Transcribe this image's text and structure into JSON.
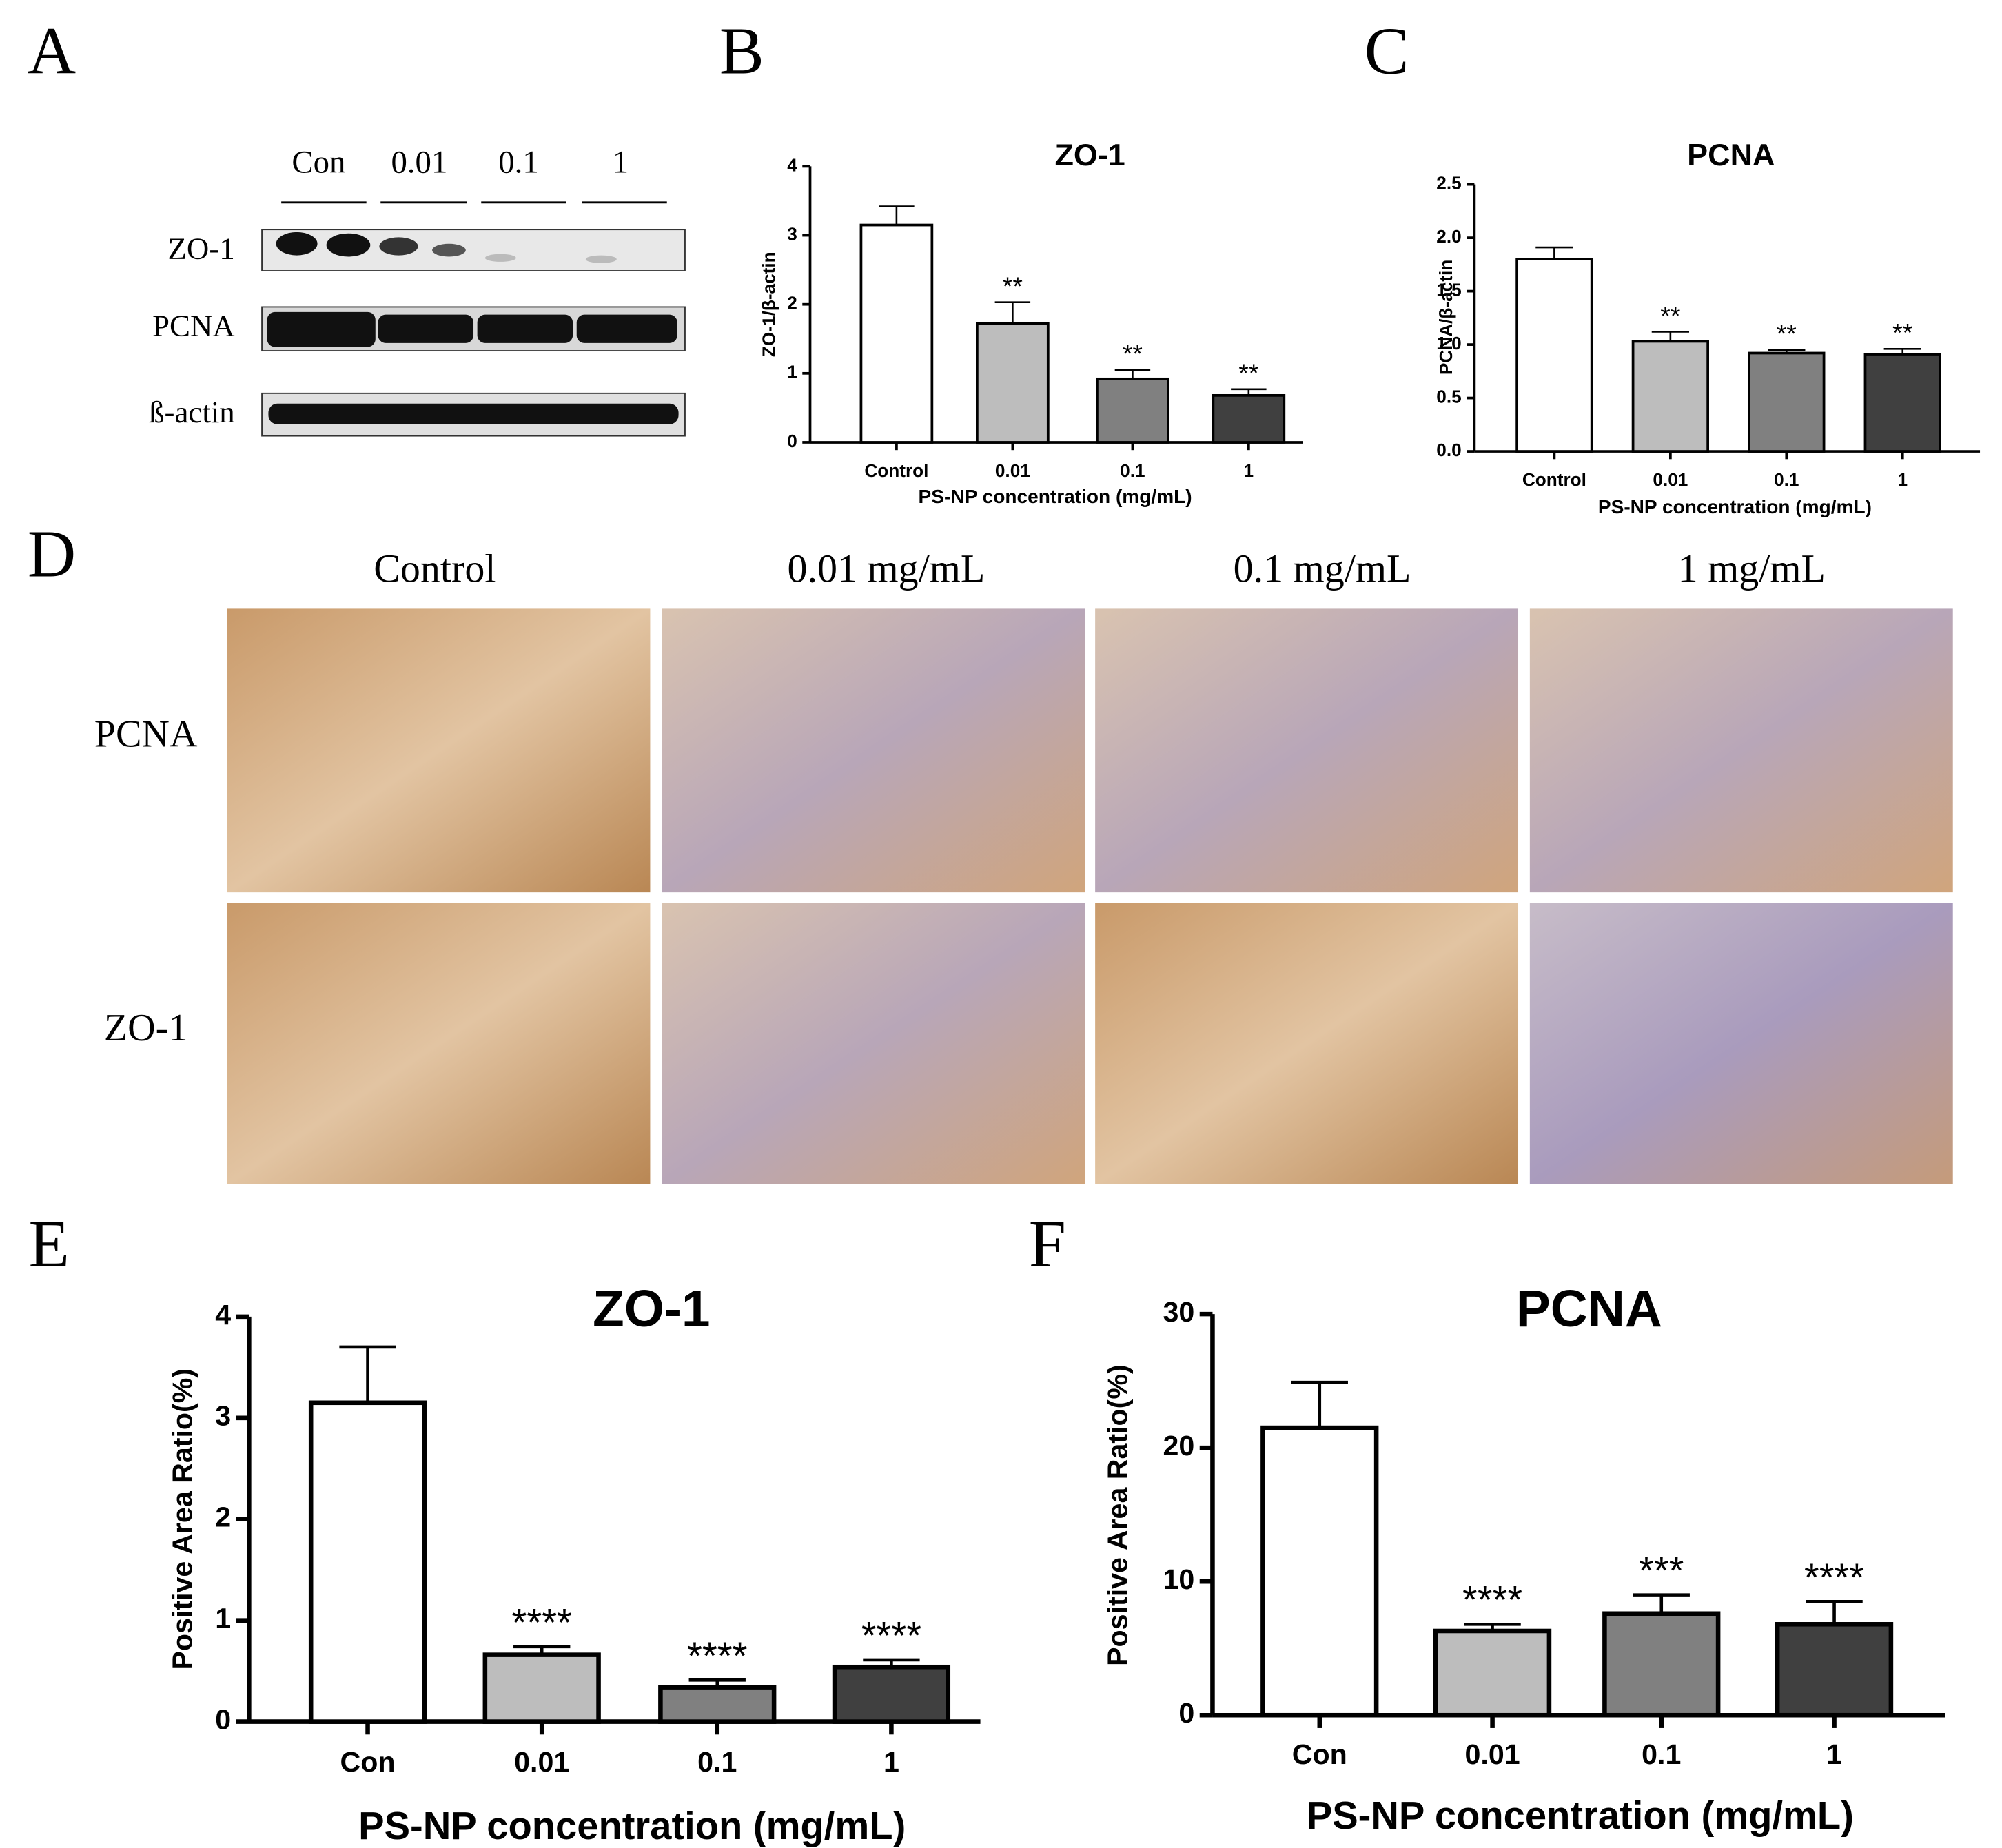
{
  "panel_labels": [
    "A",
    "B",
    "C",
    "D",
    "E",
    "F"
  ],
  "western_blot": {
    "lanes": [
      "Con",
      "0.01",
      "0.1",
      "1"
    ],
    "rows": [
      "ZO-1",
      "PCNA",
      "ß-actin"
    ]
  },
  "histology": {
    "columns": [
      "Control",
      "0.01 mg/mL",
      "0.1 mg/mL",
      "1 mg/mL"
    ],
    "rows": [
      "PCNA",
      "ZO-1"
    ]
  },
  "chart_data": [
    {
      "type": "bar",
      "title": "ZO-1",
      "x_label": "PS-NP concentration (mg/mL)",
      "y_label": "ZO-1/β-actin",
      "categories": [
        "Control",
        "0.01",
        "0.1",
        "1"
      ],
      "values": [
        3.15,
        1.72,
        0.92,
        0.68
      ],
      "errors": [
        0.27,
        0.31,
        0.13,
        0.09
      ],
      "annotations": [
        null,
        "**",
        "**",
        "**"
      ],
      "colors": [
        "#ffffff",
        "#bdbdbd",
        "#808080",
        "#404040"
      ],
      "ylim": [
        0,
        4
      ],
      "yticks": [
        0,
        1,
        2,
        3,
        4
      ]
    },
    {
      "type": "bar",
      "title": "PCNA",
      "x_label": "PS-NP concentration (mg/mL)",
      "y_label": "PCNA/β-actin",
      "categories": [
        "Control",
        "0.01",
        "0.1",
        "1"
      ],
      "values": [
        1.8,
        1.03,
        0.92,
        0.91
      ],
      "errors": [
        0.11,
        0.09,
        0.03,
        0.05
      ],
      "annotations": [
        null,
        "**",
        "**",
        "**"
      ],
      "colors": [
        "#ffffff",
        "#bdbdbd",
        "#808080",
        "#404040"
      ],
      "ylim": [
        0,
        2.5
      ],
      "yticks": [
        {
          "value": 0,
          "label": "0.0"
        },
        0.5,
        {
          "value": 1,
          "label": "1.0"
        },
        1.5,
        {
          "value": 2,
          "label": "2.0"
        },
        2.5
      ]
    },
    {
      "type": "bar",
      "title": "ZO-1",
      "x_label": "PS-NP concentration (mg/mL)",
      "y_label": "Positive Area Ratio(%)",
      "categories": [
        "Con",
        "0.01",
        "0.1",
        "1"
      ],
      "values": [
        3.15,
        0.66,
        0.34,
        0.54
      ],
      "errors": [
        0.55,
        0.08,
        0.07,
        0.07
      ],
      "annotations": [
        null,
        "****",
        "****",
        "****"
      ],
      "colors": [
        "#ffffff",
        "#bdbdbd",
        "#808080",
        "#404040"
      ],
      "ylim": [
        0,
        4
      ],
      "yticks": [
        0,
        1,
        2,
        3,
        4
      ]
    },
    {
      "type": "bar",
      "title": "PCNA",
      "x_label": "PS-NP concentration (mg/mL)",
      "y_label": "Positive Area Ratio(%)",
      "categories": [
        "Con",
        "0.01",
        "0.1",
        "1"
      ],
      "values": [
        21.5,
        6.3,
        7.6,
        6.8
      ],
      "errors": [
        3.4,
        0.5,
        1.4,
        1.7
      ],
      "annotations": [
        null,
        "****",
        "***",
        "****"
      ],
      "colors": [
        "#ffffff",
        "#bdbdbd",
        "#808080",
        "#404040"
      ],
      "ylim": [
        0,
        30
      ],
      "yticks": [
        0,
        10,
        20,
        30
      ]
    }
  ]
}
